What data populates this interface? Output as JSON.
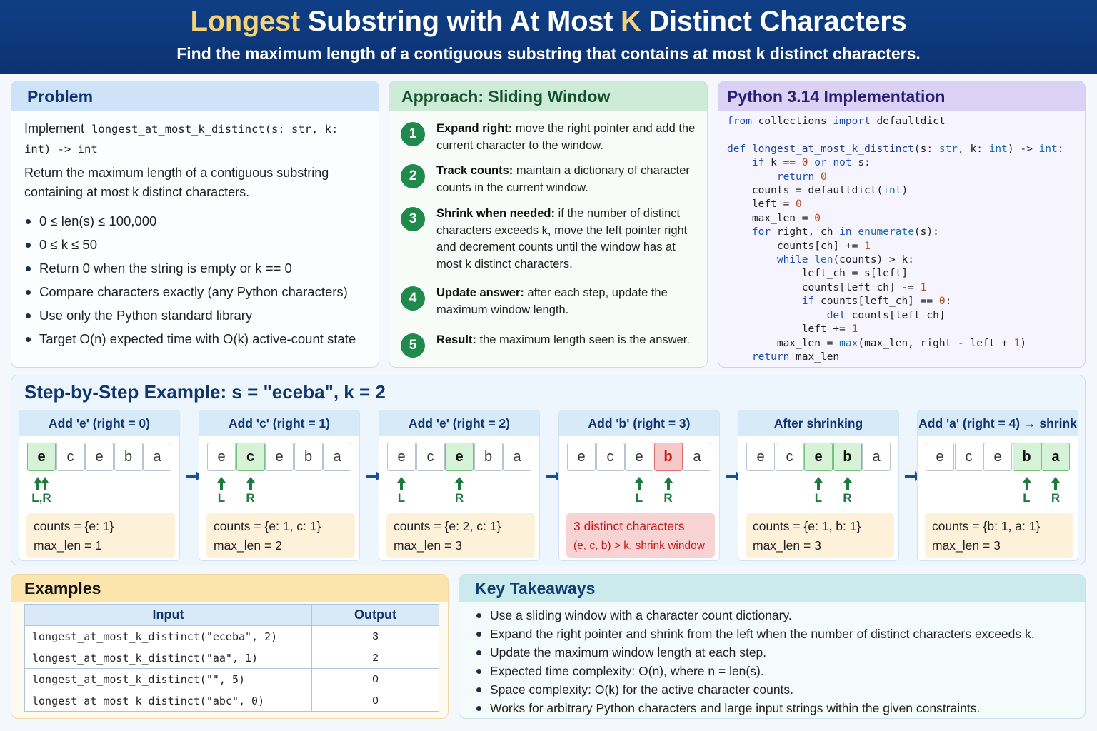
{
  "header": {
    "title_hl1": "Longest",
    "title_part2": " Substring with At Most ",
    "title_hl2": "K",
    "title_part3": " Distinct Characters",
    "subtitle": "Find the maximum length of a contiguous substring that contains at most k distinct characters."
  },
  "problem": {
    "title": "Problem",
    "impl_prefix": "Implement",
    "signature": "longest_at_most_k_distinct(s: str, k: int) -> int",
    "description_line1": "Return the maximum length of a contiguous substring",
    "description_line2": "containing at most k distinct characters.",
    "bullets": [
      "0 ≤ len(s) ≤ 100,000",
      "0 ≤ k ≤ 50",
      "Return 0 when the string is empty or k == 0",
      "Compare characters exactly (any Python characters)",
      "Use only the Python standard library",
      "Target O(n) expected time with O(k) active-count state"
    ]
  },
  "approach": {
    "title": "Approach: Sliding Window",
    "steps": [
      {
        "num": "1",
        "bold": "Expand right:",
        "text": " move the right pointer and add the current character to the window."
      },
      {
        "num": "2",
        "bold": "Track counts:",
        "text": " maintain a dictionary of character counts in the current window."
      },
      {
        "num": "3",
        "bold": "Shrink when needed:",
        "text": " if the number of distinct characters exceeds k, move the left pointer right and decrement counts until the window has at most k distinct characters."
      },
      {
        "num": "4",
        "bold": "Update answer:",
        "text": " after each step, update the maximum window length."
      },
      {
        "num": "5",
        "bold": "Result:",
        "text": " the maximum length seen is the answer."
      }
    ]
  },
  "code": {
    "title": "Python 3.14 Implementation",
    "lines": [
      "from collections import defaultdict",
      "",
      "def longest_at_most_k_distinct(s: str, k: int) -> int:",
      "    if k == 0 or not s:",
      "        return 0",
      "    counts = defaultdict(int)",
      "    left = 0",
      "    max_len = 0",
      "    for right, ch in enumerate(s):",
      "        counts[ch] += 1",
      "        while len(counts) > k:",
      "            left_ch = s[left]",
      "            counts[left_ch] -= 1",
      "            if counts[left_ch] == 0:",
      "                del counts[left_ch]",
      "            left += 1",
      "        max_len = max(max_len, right - left + 1)",
      "    return max_len"
    ]
  },
  "example": {
    "title": "Step-by-Step Example: s = \"eceba\",  k = 2",
    "chars": [
      "e",
      "c",
      "e",
      "b",
      "a"
    ],
    "steps": [
      {
        "head": "Add 'e' (right = 0)",
        "highlight": [
          0
        ],
        "red": [],
        "L": 0,
        "R": 0,
        "combined_label": "L,R",
        "info1": "counts = {e: 1}",
        "info2": "max_len = 1"
      },
      {
        "head": "Add 'c' (right = 1)",
        "highlight": [
          1
        ],
        "red": [],
        "L": 0,
        "R": 1,
        "info1": "counts = {e: 1, c: 1}",
        "info2": "max_len = 2"
      },
      {
        "head": "Add 'e' (right = 2)",
        "highlight": [
          2
        ],
        "red": [],
        "L": 0,
        "R": 2,
        "info1": "counts = {e: 2, c: 1}",
        "info2": "max_len = 3"
      },
      {
        "head": "Add 'b' (right = 3)",
        "highlight": [],
        "red": [
          3
        ],
        "L": 2,
        "R": 3,
        "info1": "3 distinct characters",
        "info2": "(e, c, b) > k, shrink window",
        "bad": true
      },
      {
        "head": "After shrinking",
        "highlight": [
          2,
          3
        ],
        "red": [],
        "L": 2,
        "R": 3,
        "info1": "counts = {e: 1, b: 1}",
        "info2": "max_len = 3"
      },
      {
        "head": "Add 'a' (right = 4) → shrink",
        "highlight": [
          3,
          4
        ],
        "red": [],
        "L": 3,
        "R": 4,
        "info1": "counts = {b: 1, a: 1}",
        "info2": "max_len = 3"
      }
    ],
    "label_L": "L",
    "label_R": "R"
  },
  "examples": {
    "title": "Examples",
    "col_input": "Input",
    "col_output": "Output",
    "rows": [
      {
        "input": "longest_at_most_k_distinct(\"eceba\", 2)",
        "output": "3"
      },
      {
        "input": "longest_at_most_k_distinct(\"aa\", 1)",
        "output": "2"
      },
      {
        "input": "longest_at_most_k_distinct(\"\", 5)",
        "output": "0"
      },
      {
        "input": "longest_at_most_k_distinct(\"abc\", 0)",
        "output": "0"
      }
    ]
  },
  "takeaways": {
    "title": "Key Takeaways",
    "items": [
      "Use a sliding window with a character count dictionary.",
      "Expand the right pointer and shrink from the left when the number of distinct characters exceeds k.",
      "Update the maximum window length at each step.",
      "Expected time complexity: O(n), where n = len(s).",
      "Space complexity: O(k) for the active character counts.",
      "Works for arbitrary Python characters and large input strings within the given constraints."
    ]
  },
  "colors": {
    "header_bg": "#0f3f86",
    "accent_gold": "#f3d27a",
    "green": "#1f8a4c",
    "red": "#c21d1d"
  }
}
